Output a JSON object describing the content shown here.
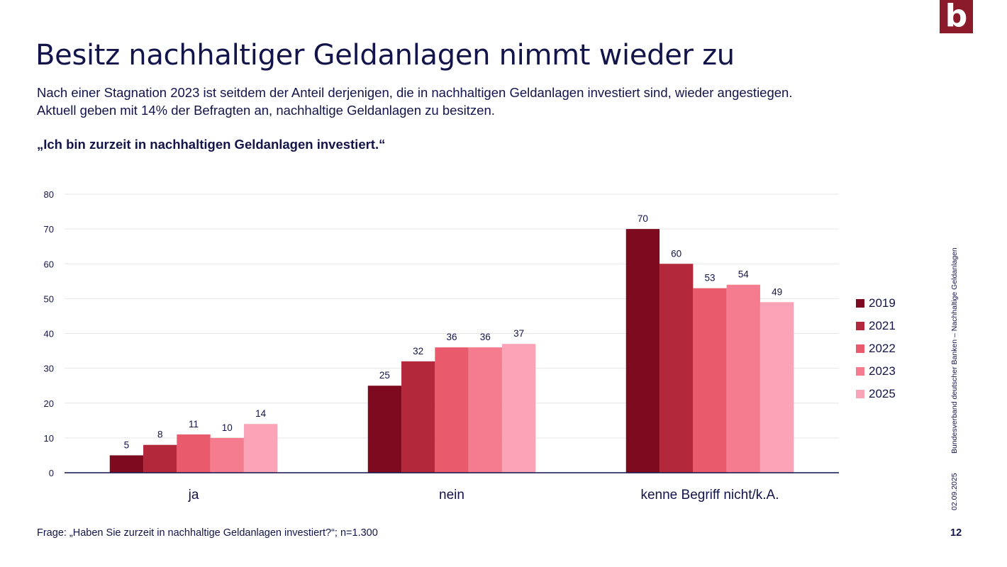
{
  "logo_text": "b",
  "title": "Besitz nachhaltiger Geldanlagen nimmt wieder zu",
  "subtitle_lines": [
    "Nach einer Stagnation 2023 ist seitdem der Anteil derjenigen, die in nachhaltigen Geldanlagen investiert sind, wieder angestiegen.",
    "Aktuell geben mit 14% der Befragten an, nachhaltige Geldanlagen zu besitzen."
  ],
  "question": "„Ich bin zurzeit in nachhaltigen Geldanlagen investiert.“",
  "side_label": "Bundesverband deutscher Banken – Nachhaltige Geldanlagen",
  "side_date": "02.09.2025",
  "footer": "Frage: „Haben Sie zurzeit in nachhaltige Geldanlagen investiert?“; n=1.300",
  "page_number": "12",
  "chart_data": {
    "type": "bar",
    "title": "„Ich bin zurzeit in nachhaltigen Geldanlagen investiert.“",
    "categories": [
      "ja",
      "nein",
      "kenne Begriff nicht/k.A."
    ],
    "series": [
      {
        "name": "2019",
        "values": [
          5,
          25,
          70
        ],
        "color": "#7d0a1e"
      },
      {
        "name": "2021",
        "values": [
          8,
          32,
          60
        ],
        "color": "#b3283a"
      },
      {
        "name": "2022",
        "values": [
          11,
          36,
          53
        ],
        "color": "#e85a6c"
      },
      {
        "name": "2023",
        "values": [
          10,
          36,
          54
        ],
        "color": "#f47c8e"
      },
      {
        "name": "2025",
        "values": [
          14,
          37,
          49
        ],
        "color": "#fba3b7"
      }
    ],
    "ylim": [
      0,
      80
    ],
    "yticks": [
      0,
      10,
      20,
      30,
      40,
      50,
      60,
      70,
      80
    ],
    "xlabel": "",
    "ylabel": "",
    "grid": true,
    "legend_position": "right"
  }
}
